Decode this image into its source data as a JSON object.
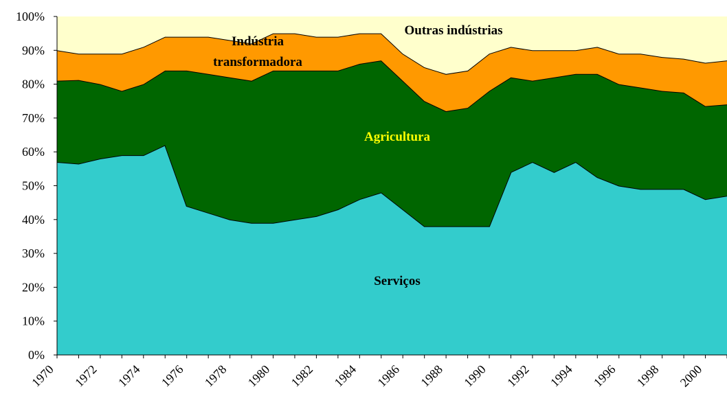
{
  "chart_data": {
    "type": "stacked_area_100",
    "categories": [
      "1970",
      null,
      "1972",
      null,
      "1974",
      null,
      "1976",
      null,
      "1978",
      null,
      "1980",
      null,
      "1982",
      null,
      "1984",
      null,
      "1986",
      null,
      "1988",
      null,
      "1990",
      null,
      "1992",
      null,
      "1994",
      null,
      "1996",
      null,
      "1998",
      null,
      "2000",
      null
    ],
    "series": [
      {
        "name": "Serviços",
        "color": "#33cccc",
        "label_color": "#000000",
        "values": [
          57,
          56.5,
          58,
          59,
          59,
          62,
          44,
          42,
          40,
          39,
          39,
          40,
          41,
          43,
          46,
          48,
          43,
          38,
          38,
          38,
          38,
          54,
          57,
          54,
          57,
          52.5,
          50,
          49,
          49,
          49,
          46,
          47
        ]
      },
      {
        "name": "Agricultura",
        "color": "#006600",
        "label_color": "#ffff00",
        "values": [
          24,
          24.7,
          22,
          19,
          21,
          22,
          40,
          41,
          42,
          42,
          45,
          44,
          43,
          41,
          40,
          39,
          38,
          37,
          34,
          35,
          40,
          28,
          24,
          28,
          26,
          30.5,
          30,
          30,
          29,
          28.5,
          27.5,
          27
        ]
      },
      {
        "name": "Indústria transformadora",
        "color": "#ff9900",
        "label_color": "#000000",
        "values": [
          9,
          7.8,
          9,
          11,
          11,
          10,
          10,
          11,
          11,
          11,
          11,
          11,
          10,
          10,
          9,
          8,
          8,
          10,
          11,
          11,
          11,
          9,
          9,
          8,
          7,
          8,
          9,
          10,
          10,
          10,
          12.8,
          13
        ]
      },
      {
        "name": "Outras indústrias",
        "color": "#ffffcc",
        "label_color": "#000000",
        "values": [
          10,
          11,
          11,
          11,
          9,
          6,
          6,
          6,
          7,
          8,
          5,
          5,
          6,
          6,
          5,
          5,
          11,
          15,
          17,
          16,
          11,
          9,
          10,
          10,
          10,
          9,
          11,
          11,
          12,
          12.5,
          13.7,
          13
        ]
      }
    ],
    "ylim": [
      0,
      100
    ],
    "yticks": [
      {
        "value": 0,
        "label": "0%"
      },
      {
        "value": 10,
        "label": "10%"
      },
      {
        "value": 20,
        "label": "20%"
      },
      {
        "value": 30,
        "label": "30%"
      },
      {
        "value": 40,
        "label": "40%"
      },
      {
        "value": 50,
        "label": "50%"
      },
      {
        "value": 60,
        "label": "60%"
      },
      {
        "value": 70,
        "label": "70%"
      },
      {
        "value": 80,
        "label": "80%"
      },
      {
        "value": 90,
        "label": "90%"
      },
      {
        "value": 100,
        "label": "100%"
      }
    ]
  }
}
